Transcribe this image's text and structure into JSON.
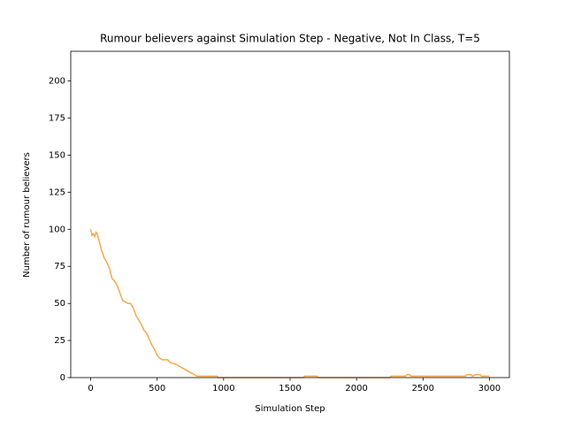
{
  "chart_data": {
    "type": "line",
    "title": "Rumour believers against Simulation Step - Negative, Not In Class, T=5",
    "x_label": "Simulation Step",
    "y_label": "Number of rumour believers",
    "color": "#f7a84a",
    "x": [
      0,
      10,
      20,
      30,
      40,
      50,
      60,
      70,
      80,
      90,
      100,
      120,
      140,
      160,
      180,
      200,
      220,
      240,
      260,
      280,
      300,
      320,
      340,
      360,
      380,
      400,
      420,
      440,
      460,
      480,
      500,
      520,
      540,
      560,
      580,
      600,
      640,
      680,
      700,
      740,
      780,
      800,
      850,
      900,
      950,
      960,
      1600,
      1610,
      1700,
      1710,
      2250,
      2260,
      2370,
      2380,
      2400,
      2410,
      2820,
      2830,
      2860,
      2870,
      2900,
      2930,
      2940,
      3000
    ],
    "values": [
      100,
      96,
      97,
      95,
      98,
      97,
      93,
      90,
      86,
      84,
      81,
      78,
      74,
      67,
      65,
      62,
      57,
      52,
      51,
      50,
      50,
      47,
      42,
      39,
      36,
      32,
      30,
      26,
      22,
      19,
      15,
      13,
      12,
      12,
      12,
      10,
      9,
      7,
      6,
      4,
      2,
      1,
      1,
      1,
      1,
      0,
      0,
      1,
      1,
      0,
      0,
      1,
      1,
      2,
      2,
      1,
      1,
      2,
      2,
      1,
      2,
      2,
      1,
      1
    ],
    "xlim": [
      -150,
      3150
    ],
    "ylim": [
      0,
      220
    ],
    "xticks": [
      0,
      500,
      1000,
      1500,
      2000,
      2500,
      3000
    ],
    "yticks": [
      0,
      25,
      50,
      75,
      100,
      125,
      150,
      175,
      200
    ],
    "grid": false
  }
}
